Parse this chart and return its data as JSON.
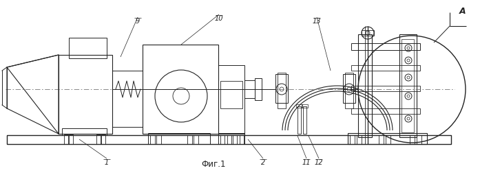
{
  "bg_color": "#ffffff",
  "line_color": "#222222",
  "dash_color": "#666666",
  "title": "Фиг.1",
  "figsize": [
    6.97,
    2.58
  ],
  "dpi": 100,
  "xlim": [
    0,
    697
  ],
  "ylim": [
    0,
    258
  ]
}
